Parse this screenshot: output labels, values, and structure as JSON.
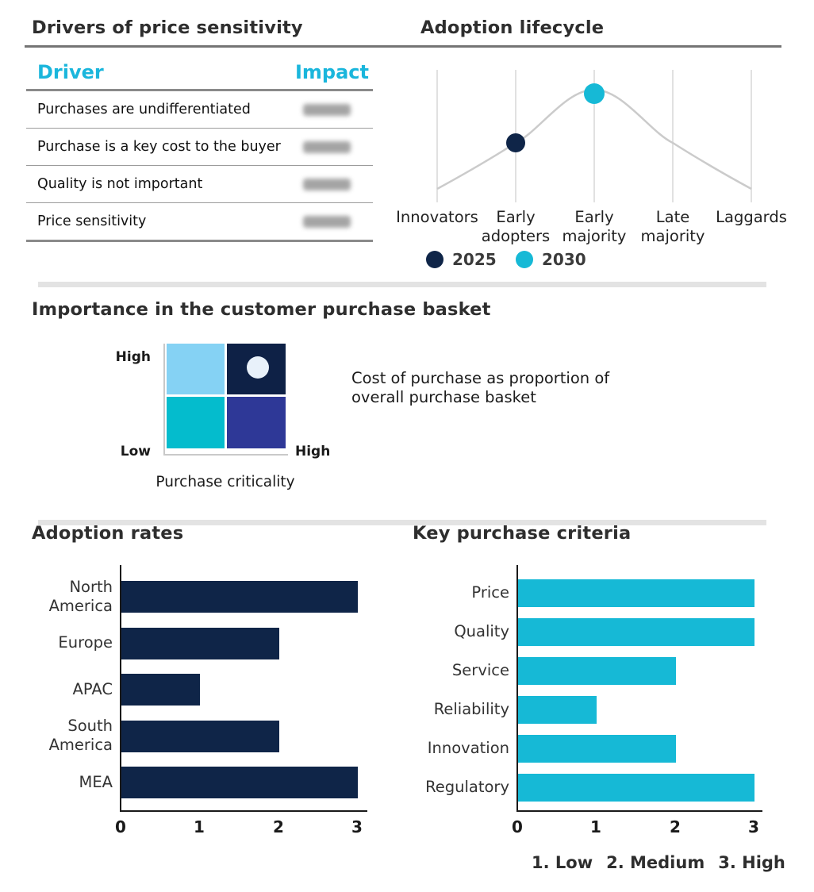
{
  "drivers_table": {
    "title": "Drivers of price sensitivity",
    "accent_color": "#1ab6dc",
    "col_driver": "Driver",
    "col_impact": "Impact",
    "rows": [
      {
        "driver": "Purchases are undifferentiated",
        "impact_blurred": true
      },
      {
        "driver": "Purchase is a key cost to the buyer",
        "impact_blurred": true
      },
      {
        "driver": "Quality is not important",
        "impact_blurred": true
      },
      {
        "driver": "Price sensitivity",
        "impact_blurred": true
      }
    ]
  },
  "chart_data": [
    {
      "type": "line",
      "title": "Adoption lifecycle",
      "categories": [
        "Innovators",
        "Early adopters",
        "Early majority",
        "Late majority",
        "Laggards"
      ],
      "curve": "bell curve, grey, peaking at Early majority",
      "grid": "vertical gridlines at each category",
      "series": [
        {
          "name": "2025",
          "category": "Early adopters",
          "category_index": 1,
          "color": "#0f2548"
        },
        {
          "name": "2030",
          "category": "Early majority",
          "category_index": 2,
          "color": "#16b9d6"
        }
      ],
      "legend_position": "bottom"
    },
    {
      "type": "matrix",
      "title": "Importance in the customer purchase basket",
      "x_axis_label": "Purchase criticality",
      "y_high": "High",
      "y_low": "Low",
      "x_high": "High",
      "annotation": "Cost of purchase as proportion of overall purchase basket",
      "quadrant_colors": {
        "top_left": "#85d2f4",
        "top_right": "#0e2146",
        "bottom_left": "#04bccd",
        "bottom_right": "#2e3897"
      },
      "marker": {
        "quadrant": "top_right",
        "color": "#e8f1fa"
      }
    },
    {
      "type": "bar",
      "orientation": "horizontal",
      "title": "Adoption rates",
      "categories": [
        "North America",
        "Europe",
        "APAC",
        "South America",
        "MEA"
      ],
      "values": [
        3,
        2,
        1,
        2,
        3
      ],
      "xlim": [
        0,
        3
      ],
      "ticks": [
        "0",
        "1",
        "2",
        "3"
      ],
      "bar_color": "#0f2548"
    },
    {
      "type": "bar",
      "orientation": "horizontal",
      "title": "Key purchase criteria",
      "categories": [
        "Price",
        "Quality",
        "Service",
        "Reliability",
        "Innovation",
        "Regulatory"
      ],
      "values": [
        3,
        3,
        2,
        1,
        2,
        3
      ],
      "xlim": [
        0,
        3
      ],
      "ticks": [
        "0",
        "1",
        "2",
        "3"
      ],
      "bar_color": "#16b9d6",
      "scale_note": [
        "1. Low",
        "2. Medium",
        "3. High"
      ]
    }
  ]
}
